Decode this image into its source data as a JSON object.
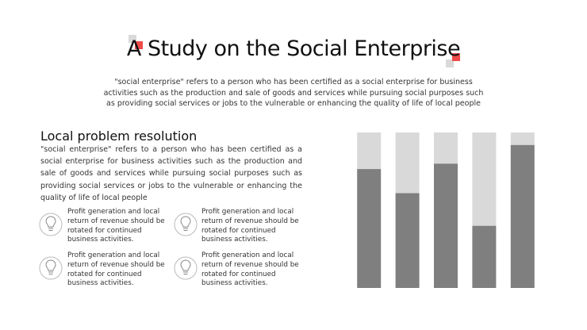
{
  "header": {
    "title": "A Study on the Social Enterprise",
    "subtitle": "\"social enterprise\"  refers to a person who has been certified  as a social enterprise  for business activities such as the production  and sale of goods and services  while pursuing social purposes  such as providing social services or jobs to the vulnerable  or enhancing  the quality of life of local people"
  },
  "section": {
    "heading": "Local problem resolution",
    "body": "\"social enterprise\"  refers to a person who has been certified  as a social enterprise  for business  activities  such as the production  and sale of goods and services  while pursuing  social purposes  such as providing social services or jobs to the vulnerable  or enhancing  the quality of life of local people"
  },
  "items": [
    {
      "text": "Profit generation and local return of revenue should be rotated for continued business activities."
    },
    {
      "text": "Profit generation and local return of revenue should be rotated for continued business activities."
    },
    {
      "text": "Profit generation and local return of revenue should be rotated for continued business activities."
    },
    {
      "text": "Profit generation and local return of revenue should be rotated for continued business activities."
    }
  ],
  "chart_data": {
    "type": "bar",
    "stacked": true,
    "categories": [
      null,
      null,
      null,
      null,
      null
    ],
    "series": [
      {
        "color": "#7f7f7f",
        "values": [
          76.5,
          61,
          80,
          40,
          92
        ]
      },
      {
        "color": "#d9d9d9",
        "values": [
          23.5,
          39,
          20,
          60,
          8
        ]
      }
    ],
    "ylim": [
      0,
      100
    ]
  }
}
